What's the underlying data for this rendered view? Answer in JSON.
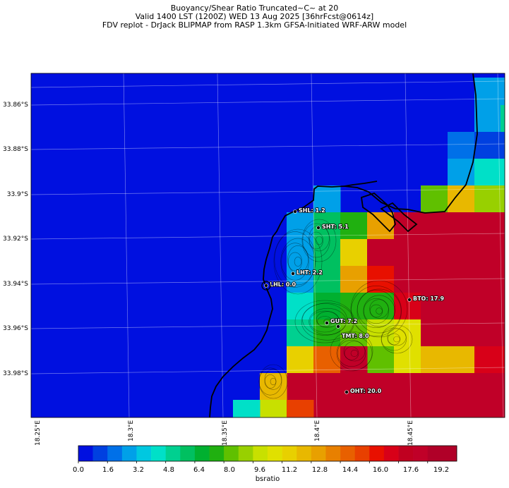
{
  "title_lines": [
    "Buoyancy/Shear Ratio Truncated~C~    at 20",
    "Valid 1400 LST (1200Z) WED 13 Aug 2025 [36hrFcst@0614z]",
    "FDV replot - DrJack BLIPMAP from RASP 1.3km GFSA-Initiated WRF-ARW model"
  ],
  "lat_labels": [
    "33.86°S",
    "33.88°S",
    "33.9°S",
    "33.92°S",
    "33.94°S",
    "33.96°S",
    "33.98°S"
  ],
  "lon_labels": [
    "18.25°E",
    "18.3°E",
    "18.35°E",
    "18.4°E",
    "18.45°E"
  ],
  "colorbar": {
    "label": "bsratio",
    "tick_labels": [
      "0.0",
      "1.6",
      "3.2",
      "4.8",
      "6.4",
      "8.0",
      "9.6",
      "11.2",
      "12.8",
      "14.4",
      "16.0",
      "17.6",
      "19.2"
    ],
    "min": 0,
    "max": 20.8,
    "step": 0.8,
    "colors": [
      "#0010e0",
      "#0040e0",
      "#0070e8",
      "#00a0e8",
      "#00c8e0",
      "#00e0c8",
      "#00d090",
      "#00c060",
      "#00b030",
      "#20b010",
      "#60c000",
      "#98d000",
      "#c8e000",
      "#e0e000",
      "#e8d000",
      "#e8b800",
      "#e8a000",
      "#e88000",
      "#e86000",
      "#e84000",
      "#e81000",
      "#d80018",
      "#c00020",
      "#c00028",
      "#b00028",
      "#b00028"
    ]
  },
  "sites": [
    {
      "name": "SHL",
      "value": "1.2",
      "label": "SHL: 1.2"
    },
    {
      "name": "SHT",
      "value": "5.1",
      "label": "SHT: 5.1"
    },
    {
      "name": "LHT",
      "value": "2.2",
      "label": "LHT: 2.2"
    },
    {
      "name": "LHL",
      "value": "0.0",
      "label": "LHL: 0.0"
    },
    {
      "name": "BTO",
      "value": "17.9",
      "label": "BTO: 17.9"
    },
    {
      "name": "GUT",
      "value": "7.2",
      "label": "GUT: 7.2"
    },
    {
      "name": "TMT",
      "value": "8.0",
      "label": "TMT: 8.0"
    },
    {
      "name": "OHT",
      "value": "20.0",
      "label": "OHT: 20.0"
    }
  ]
}
